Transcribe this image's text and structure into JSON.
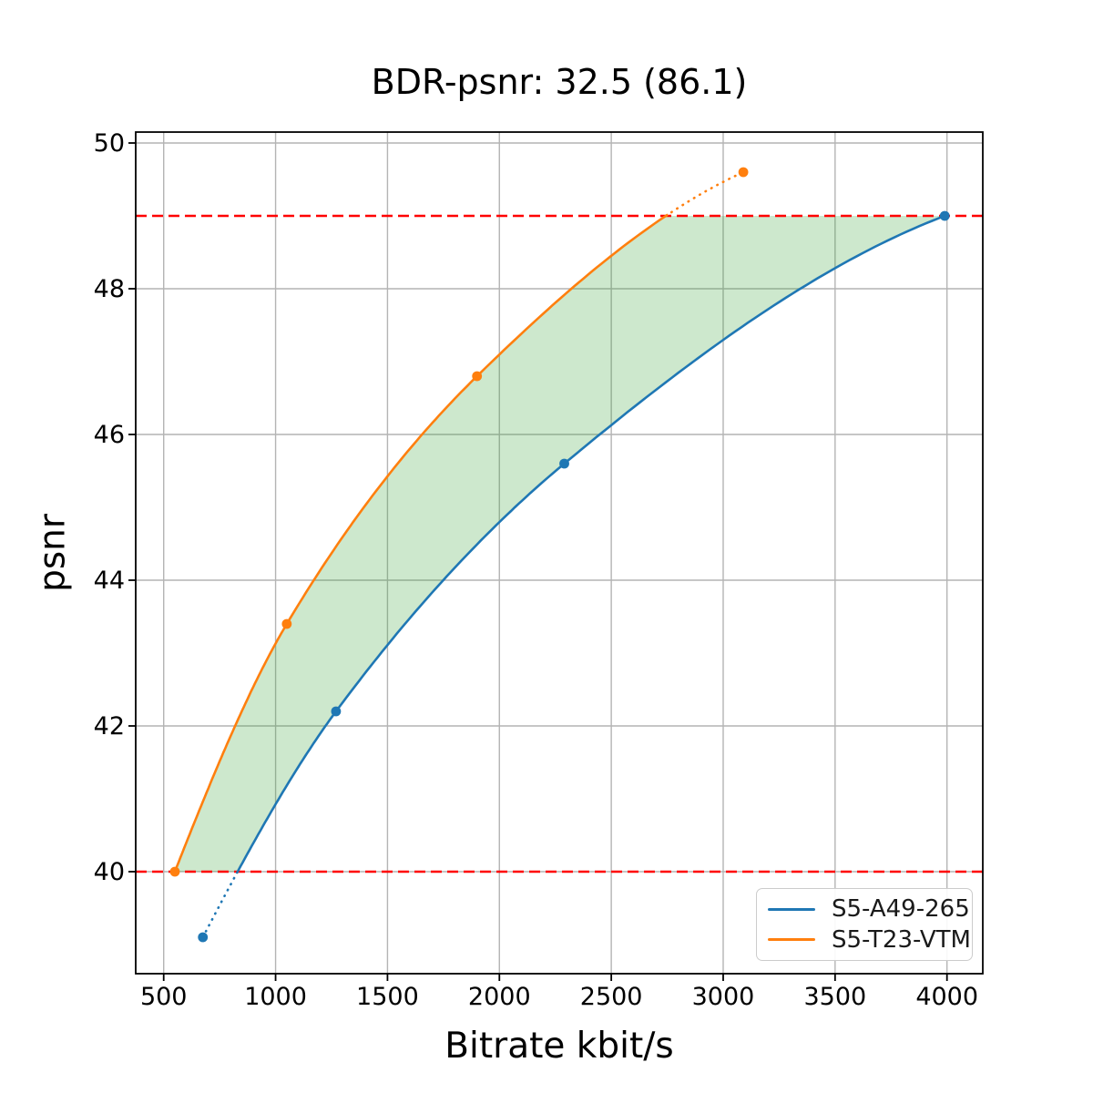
{
  "chart_data": {
    "type": "line",
    "title": "BDR-psnr: 32.5 (86.1)",
    "xlabel": "Bitrate kbit/s",
    "ylabel": "psnr",
    "xlim": [
      375,
      4160
    ],
    "ylim": [
      38.6,
      50.15
    ],
    "xticks": [
      500,
      1000,
      1500,
      2000,
      2500,
      3000,
      3500,
      4000
    ],
    "yticks": [
      40,
      42,
      44,
      46,
      48,
      50
    ],
    "grid": true,
    "grid_color": "#b4b4b4",
    "legend_position": "lower-right",
    "series": [
      {
        "name": "S5-A49-265",
        "color": "#1f77b4",
        "marker": "circle",
        "x": [
          675,
          1270,
          2290,
          3990
        ],
        "y": [
          39.1,
          42.2,
          45.6,
          49.0
        ],
        "line_style": "solid inside psnr band, dotted outside"
      },
      {
        "name": "S5-T23-VTM",
        "color": "#ff7f0e",
        "marker": "circle",
        "x": [
          550,
          1050,
          1900,
          3090
        ],
        "y": [
          40.0,
          43.4,
          46.8,
          49.6
        ],
        "line_style": "solid inside psnr band, dotted outside"
      }
    ],
    "reference_lines": [
      {
        "y": 40,
        "color": "#ff0000",
        "style": "dashed"
      },
      {
        "y": 49,
        "color": "#ff0000",
        "style": "dashed"
      }
    ],
    "shaded_region": {
      "between_series": [
        "S5-T23-VTM",
        "S5-A49-265"
      ],
      "psnr_band": [
        40,
        49
      ],
      "color": "#2ca02c",
      "alpha": 0.24
    }
  }
}
